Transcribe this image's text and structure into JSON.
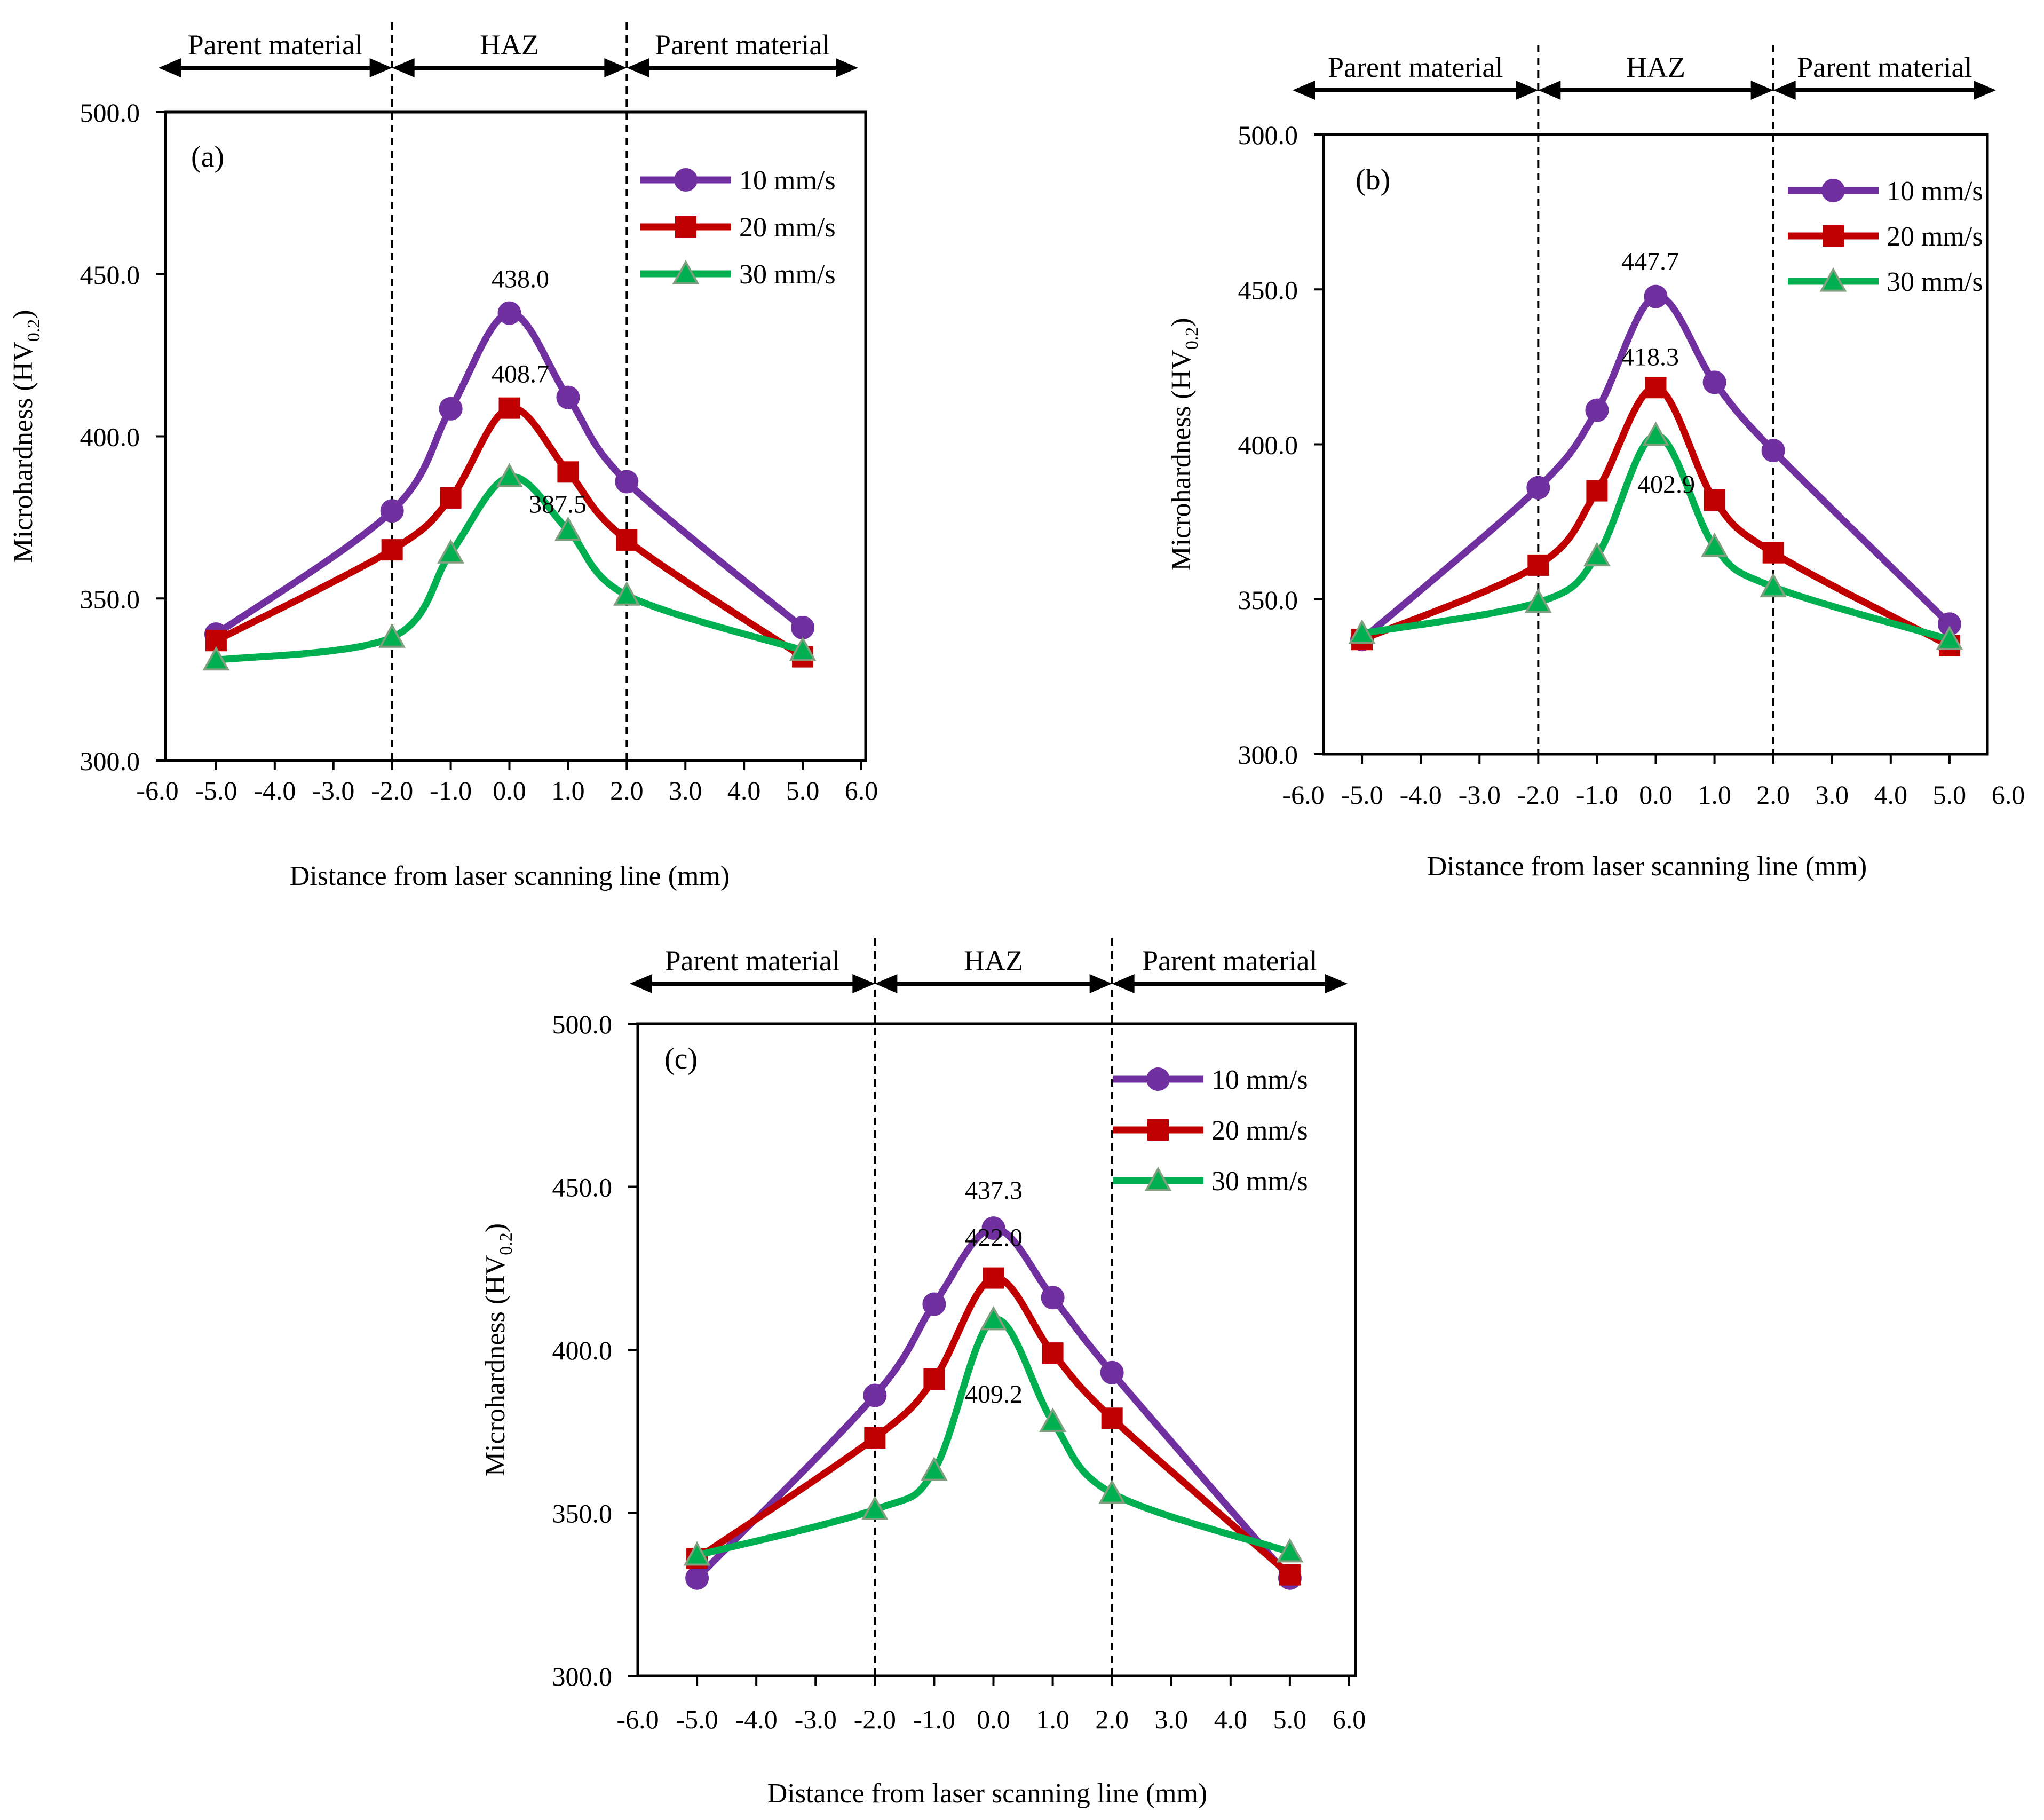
{
  "figure": {
    "colors": {
      "s10": "#7030A0",
      "s20": "#C00000",
      "s30": "#00B050",
      "s30_marker": "#7F9F7F"
    },
    "regions": [
      "Parent material",
      "HAZ",
      "Parent material"
    ],
    "legend": [
      "10 mm/s",
      "20 mm/s",
      "30 mm/s"
    ]
  },
  "chart_data": [
    {
      "type": "line",
      "panel_label": "(a)",
      "xlabel": "Distance from laser scanning line (mm)",
      "ylabel": "Microhardness (HV",
      "ylabel_sub": "0.2",
      "ylabel_close": ")",
      "xlim": [
        -6,
        6
      ],
      "ylim": [
        300,
        500
      ],
      "xticks": [
        "-6.0",
        "-5.0",
        "-4.0",
        "-3.0",
        "-2.0",
        "-1.0",
        "0.0",
        "1.0",
        "2.0",
        "3.0",
        "4.0",
        "5.0",
        "6.0"
      ],
      "yticks": [
        "300.0",
        "350.0",
        "400.0",
        "450.0",
        "500.0"
      ],
      "haz_bounds": [
        -2,
        2
      ],
      "x": [
        -5,
        -2,
        -1,
        0,
        1,
        2,
        5
      ],
      "series": [
        {
          "name": "10 mm/s",
          "values": [
            339,
            377,
            408.5,
            438.0,
            412,
            386,
            341
          ]
        },
        {
          "name": "20 mm/s",
          "values": [
            337,
            365,
            381,
            408.7,
            389,
            368,
            332
          ]
        },
        {
          "name": "30 mm/s",
          "values": [
            331,
            338,
            364,
            387.5,
            371,
            351,
            334
          ]
        }
      ],
      "annotations": [
        {
          "text": "438.0",
          "x": 0,
          "y": 438.0
        },
        {
          "text": "408.7",
          "x": 0,
          "y": 408.7
        },
        {
          "text": "387.5",
          "x": 0,
          "y": 387.5
        }
      ]
    },
    {
      "type": "line",
      "panel_label": "(b)",
      "xlabel": "Distance from laser scanning line (mm)",
      "ylabel": "Microhardness (HV",
      "ylabel_sub": "0.2",
      "ylabel_close": ")",
      "xlim": [
        -6,
        6
      ],
      "ylim": [
        300,
        500
      ],
      "xticks": [
        "-6.0",
        "-5.0",
        "-4.0",
        "-3.0",
        "-2.0",
        "-1.0",
        "0.0",
        "1.0",
        "2.0",
        "3.0",
        "4.0",
        "5.0",
        "6.0"
      ],
      "yticks": [
        "300.0",
        "350.0",
        "400.0",
        "450.0",
        "500.0"
      ],
      "haz_bounds": [
        -2,
        2
      ],
      "x": [
        -5,
        -2,
        -1,
        0,
        1,
        2,
        5
      ],
      "series": [
        {
          "name": "10 mm/s",
          "values": [
            337,
            386,
            411,
            447.7,
            420,
            398,
            342
          ]
        },
        {
          "name": "20 mm/s",
          "values": [
            337,
            361,
            385,
            418.3,
            382,
            365,
            335
          ]
        },
        {
          "name": "30 mm/s",
          "values": [
            339,
            349,
            364,
            402.9,
            367,
            354,
            337
          ]
        }
      ],
      "annotations": [
        {
          "text": "447.7",
          "x": 0,
          "y": 447.7
        },
        {
          "text": "418.3",
          "x": 0,
          "y": 418.3
        },
        {
          "text": "402.9",
          "x": 0,
          "y": 402.9
        }
      ]
    },
    {
      "type": "line",
      "panel_label": "(c)",
      "xlabel": "Distance from laser scanning line (mm)",
      "ylabel": "Microhardness (HV",
      "ylabel_sub": "0.2",
      "ylabel_close": ")",
      "xlim": [
        -6,
        6
      ],
      "ylim": [
        300,
        500
      ],
      "xticks": [
        "-6.0",
        "-5.0",
        "-4.0",
        "-3.0",
        "-2.0",
        "-1.0",
        "0.0",
        "1.0",
        "2.0",
        "3.0",
        "4.0",
        "5.0",
        "6.0"
      ],
      "yticks": [
        "300.0",
        "350.0",
        "400.0",
        "450.0",
        "500.0"
      ],
      "haz_bounds": [
        -2,
        2
      ],
      "x": [
        -5,
        -2,
        -1,
        0,
        1,
        2,
        5
      ],
      "series": [
        {
          "name": "10 mm/s",
          "values": [
            330,
            386,
            414,
            437.3,
            416,
            393,
            330
          ]
        },
        {
          "name": "20 mm/s",
          "values": [
            336,
            373,
            391,
            422.0,
            399,
            379,
            331
          ]
        },
        {
          "name": "30 mm/s",
          "values": [
            337,
            351,
            363,
            409.2,
            378,
            356,
            338
          ]
        }
      ],
      "annotations": [
        {
          "text": "437.3",
          "x": 0,
          "y": 437.3
        },
        {
          "text": "422.0",
          "x": 0,
          "y": 422.0
        },
        {
          "text": "409.2",
          "x": 0,
          "y": 409.2
        }
      ]
    }
  ]
}
